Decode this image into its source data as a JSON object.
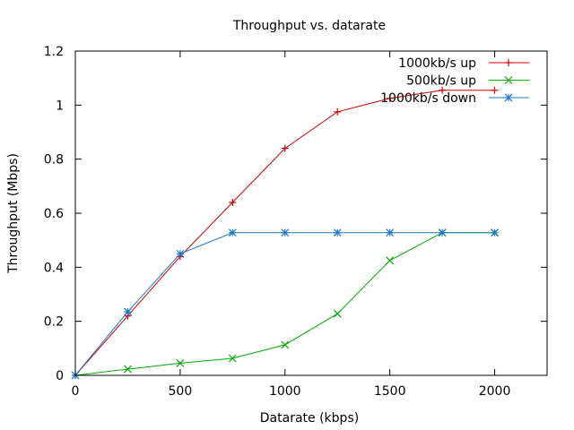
{
  "chart_data": {
    "type": "line",
    "title": "Throughput vs. datarate",
    "xlabel": "Datarate (kbps)",
    "ylabel": "Throughput (Mbps)",
    "xlim": [
      0,
      2250
    ],
    "ylim": [
      0,
      1.2
    ],
    "xticks": [
      0,
      500,
      1000,
      1500,
      2000
    ],
    "yticks": [
      0,
      0.2,
      0.4,
      0.6,
      0.8,
      1,
      1.2
    ],
    "xtick_labels": [
      "0",
      "500",
      "1000",
      "1500",
      "2000"
    ],
    "ytick_labels": [
      "0",
      "0.2",
      "0.4",
      "0.6",
      "0.8",
      "1",
      "1.2"
    ],
    "grid": false,
    "legend_position": "top-right",
    "series": [
      {
        "name": "1000kb/s up",
        "color": "#cc0000",
        "marker": "plus",
        "x": [
          0,
          250,
          500,
          750,
          1000,
          1250,
          1500,
          1750,
          2000
        ],
        "y": [
          0,
          0.22,
          0.44,
          0.64,
          0.84,
          0.975,
          1.025,
          1.055,
          1.055
        ]
      },
      {
        "name": "500kb/s up",
        "color": "#00aa00",
        "marker": "cross",
        "x": [
          0,
          250,
          500,
          750,
          1000,
          1250,
          1500,
          1750,
          2000
        ],
        "y": [
          0,
          0.023,
          0.045,
          0.063,
          0.113,
          0.228,
          0.425,
          0.528,
          0.528
        ]
      },
      {
        "name": "1000kb/s down",
        "color": "#1f78c8",
        "marker": "star",
        "x": [
          0,
          250,
          500,
          750,
          1000,
          1250,
          1500,
          1750,
          2000
        ],
        "y": [
          0,
          0.235,
          0.45,
          0.528,
          0.528,
          0.528,
          0.528,
          0.528,
          0.528
        ]
      }
    ]
  }
}
